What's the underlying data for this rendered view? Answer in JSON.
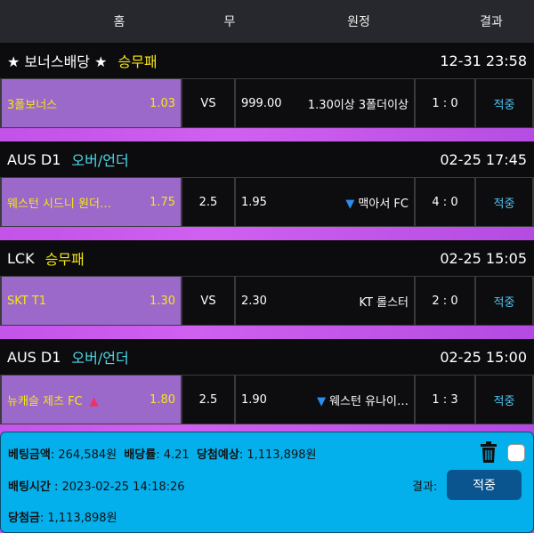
{
  "header": {
    "home": "홈",
    "draw": "무",
    "away": "원정",
    "result": "결과"
  },
  "groups": [
    {
      "league": "★ 보너스배당 ★",
      "market": "승무패",
      "market_color": "#f5e616",
      "datetime": "12-31 23:58",
      "home": "3폴보너스",
      "home_odds": "1.03",
      "home_arrow": "",
      "mid": "VS",
      "away_odds": "999.00",
      "away": "1.30이상 3폴더이상",
      "away_arrow": "",
      "score": "1 : 0",
      "result": "적중"
    },
    {
      "league": "AUS D1",
      "market": "오버/언더",
      "market_color": "#4fd8e8",
      "datetime": "02-25 17:45",
      "home": "웨스턴 시드니 원더…",
      "home_odds": "1.75",
      "home_arrow": "",
      "mid": "2.5",
      "away_odds": "1.95",
      "away": "맥아서 FC",
      "away_arrow": "▼",
      "score": "4 : 0",
      "result": "적중"
    },
    {
      "league": "LCK",
      "market": "승무패",
      "market_color": "#f5e616",
      "datetime": "02-25 15:05",
      "home": "SKT T1",
      "home_odds": "1.30",
      "home_arrow": "",
      "mid": "VS",
      "away_odds": "2.30",
      "away": "KT 롤스터",
      "away_arrow": "",
      "score": "2 : 0",
      "result": "적중"
    },
    {
      "league": "AUS D1",
      "market": "오버/언더",
      "market_color": "#4fd8e8",
      "datetime": "02-25 15:00",
      "home": "뉴캐슬 제츠 FC",
      "home_odds": "1.80",
      "home_arrow": "▲",
      "mid": "2.5",
      "away_odds": "1.90",
      "away": "웨스턴 유나이…",
      "away_arrow": "▼",
      "score": "1 : 3",
      "result": "적중"
    }
  ],
  "summary": {
    "bet_amount_label": "베팅금액",
    "bet_amount": "264,584원",
    "odds_label": "배당률",
    "odds": "4.21",
    "expected_label": "당첨예상",
    "expected": "1,113,898원",
    "bet_time_label": "배팅시간",
    "bet_time": "2023-02-25 14:18:26",
    "result_label": "결과:",
    "result": "적중",
    "payout_label": "당첨금",
    "payout": "1,113,898원"
  }
}
